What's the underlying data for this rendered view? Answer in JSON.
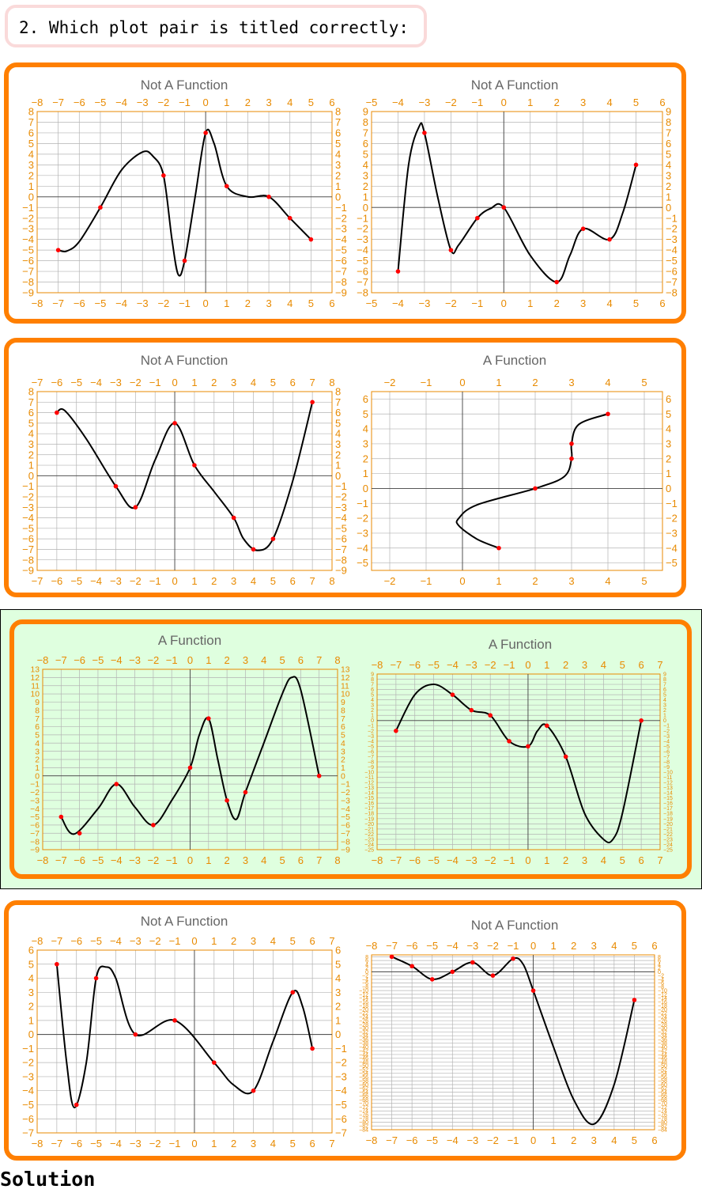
{
  "question": {
    "text": "2. Which plot pair is titled correctly:"
  },
  "solution_label": "Solution",
  "colors": {
    "panel_border": "#ff7f00",
    "highlight_bg": "#dfffdf",
    "tick_color": "#e88a00",
    "title_color": "#666666",
    "curve": "#000000",
    "point": "#ff0000",
    "grid": "#b4b4b4"
  },
  "chart_data": [
    {
      "type": "line",
      "title": "Not A Function",
      "xlim": [
        -8,
        6
      ],
      "ylim": [
        -9,
        8
      ],
      "xticks": [
        -8,
        -7,
        -6,
        -5,
        -4,
        -3,
        -2,
        -1,
        0,
        1,
        2,
        3,
        4,
        5,
        6
      ],
      "yticks": [
        -9,
        -8,
        -7,
        -6,
        -5,
        -4,
        -3,
        -2,
        -1,
        0,
        1,
        2,
        3,
        4,
        5,
        6,
        7,
        8
      ],
      "points": [
        [
          -7,
          -5
        ],
        [
          -5,
          -1
        ],
        [
          -2,
          2
        ],
        [
          -1,
          -6
        ],
        [
          0,
          6
        ],
        [
          1,
          1
        ],
        [
          3,
          0
        ],
        [
          4,
          -2
        ],
        [
          5,
          -4
        ]
      ],
      "curve": [
        [
          -7,
          -5
        ],
        [
          -6.6,
          -5.1
        ],
        [
          -6,
          -4.2
        ],
        [
          -5,
          -1
        ],
        [
          -4,
          2.5
        ],
        [
          -3,
          4.2
        ],
        [
          -2.5,
          3.8
        ],
        [
          -2,
          2
        ],
        [
          -1.6,
          -4
        ],
        [
          -1.3,
          -7.3
        ],
        [
          -1,
          -6
        ],
        [
          -0.5,
          0
        ],
        [
          0,
          6
        ],
        [
          0.4,
          5
        ],
        [
          1,
          1
        ],
        [
          2,
          0
        ],
        [
          3,
          0
        ],
        [
          4,
          -2
        ],
        [
          5,
          -4
        ]
      ]
    },
    {
      "type": "line",
      "title": "Not A Function",
      "xlim": [
        -5,
        6
      ],
      "ylim": [
        -8,
        9
      ],
      "xticks": [
        -5,
        -4,
        -3,
        -2,
        -1,
        0,
        1,
        2,
        3,
        4,
        5,
        6
      ],
      "yticks": [
        -8,
        -7,
        -6,
        -5,
        -4,
        -3,
        -2,
        -1,
        0,
        1,
        2,
        3,
        4,
        5,
        6,
        7,
        8,
        9
      ],
      "points": [
        [
          -4,
          -6
        ],
        [
          -3,
          7
        ],
        [
          -2,
          -4
        ],
        [
          -1,
          -1
        ],
        [
          0,
          0
        ],
        [
          2,
          -7
        ],
        [
          3,
          -2
        ],
        [
          4,
          -3
        ],
        [
          5,
          4
        ]
      ],
      "curve": [
        [
          -4,
          -6
        ],
        [
          -3.6,
          4
        ],
        [
          -3.2,
          7.6
        ],
        [
          -3,
          7
        ],
        [
          -2.5,
          1
        ],
        [
          -2,
          -4
        ],
        [
          -1.7,
          -3.5
        ],
        [
          -1,
          -1
        ],
        [
          -0.5,
          -0.1
        ],
        [
          0,
          0
        ],
        [
          1,
          -4.5
        ],
        [
          2,
          -7
        ],
        [
          2.5,
          -4.5
        ],
        [
          3,
          -2
        ],
        [
          4,
          -3
        ],
        [
          4.5,
          -0.5
        ],
        [
          5,
          4
        ]
      ]
    },
    {
      "type": "line",
      "title": "Not A Function",
      "xlim": [
        -7,
        8
      ],
      "ylim": [
        -9,
        8
      ],
      "xticks": [
        -7,
        -6,
        -5,
        -4,
        -3,
        -2,
        -1,
        0,
        1,
        2,
        3,
        4,
        5,
        6,
        7,
        8
      ],
      "yticks": [
        -9,
        -8,
        -7,
        -6,
        -5,
        -4,
        -3,
        -2,
        -1,
        0,
        1,
        2,
        3,
        4,
        5,
        6,
        7,
        8
      ],
      "points": [
        [
          -6,
          6
        ],
        [
          -3,
          -1
        ],
        [
          -2,
          -3
        ],
        [
          0,
          5
        ],
        [
          1,
          1
        ],
        [
          3,
          -4
        ],
        [
          4,
          -7
        ],
        [
          5,
          -6
        ],
        [
          7,
          7
        ]
      ],
      "curve": [
        [
          -6,
          6
        ],
        [
          -5.6,
          6.2
        ],
        [
          -4.5,
          3.5
        ],
        [
          -3,
          -1
        ],
        [
          -2,
          -3
        ],
        [
          -1,
          1.5
        ],
        [
          0,
          5
        ],
        [
          1,
          1
        ],
        [
          2,
          -1.5
        ],
        [
          3,
          -4
        ],
        [
          3.5,
          -6
        ],
        [
          4.2,
          -7.1
        ],
        [
          5,
          -6
        ],
        [
          6,
          -0.5
        ],
        [
          7,
          7
        ]
      ]
    },
    {
      "type": "line",
      "title": "A Function",
      "xlim": [
        -2.5,
        5.5
      ],
      "ylim": [
        -5.5,
        6.5
      ],
      "xticks": [
        -2,
        -1,
        0,
        1,
        2,
        3,
        4,
        5
      ],
      "yticks": [
        -5,
        -4,
        -3,
        -2,
        -1,
        0,
        1,
        2,
        3,
        4,
        5,
        6
      ],
      "points": [
        [
          1,
          -4
        ],
        [
          2,
          0
        ],
        [
          3,
          2
        ],
        [
          3,
          3
        ],
        [
          4,
          5
        ]
      ],
      "curve": [
        [
          1,
          -4
        ],
        [
          0.4,
          -3.4
        ],
        [
          -0.1,
          -2.5
        ],
        [
          -0.1,
          -2
        ],
        [
          0.4,
          -1.1
        ],
        [
          2,
          0
        ],
        [
          2.8,
          0.8
        ],
        [
          3,
          2
        ],
        [
          3,
          3
        ],
        [
          3.2,
          4.3
        ],
        [
          4,
          5
        ]
      ]
    },
    {
      "type": "line",
      "title": "A Function",
      "xlim": [
        -8,
        8
      ],
      "ylim": [
        -9,
        13
      ],
      "xticks": [
        -8,
        -7,
        -6,
        -5,
        -4,
        -3,
        -2,
        -1,
        0,
        1,
        2,
        3,
        4,
        5,
        6,
        7,
        8
      ],
      "yticks": [
        -9,
        -8,
        -7,
        -6,
        -5,
        -4,
        -3,
        -2,
        -1,
        0,
        1,
        2,
        3,
        4,
        5,
        6,
        7,
        8,
        9,
        10,
        11,
        12,
        13
      ],
      "points": [
        [
          -7,
          -5
        ],
        [
          -6,
          -7
        ],
        [
          -4,
          -1
        ],
        [
          -2,
          -6
        ],
        [
          0,
          1
        ],
        [
          1,
          7
        ],
        [
          2,
          -3
        ],
        [
          3,
          -2
        ],
        [
          7,
          0
        ]
      ],
      "curve": [
        [
          -7,
          -5
        ],
        [
          -6.3,
          -7.1
        ],
        [
          -5,
          -4
        ],
        [
          -4,
          -1
        ],
        [
          -3,
          -3.8
        ],
        [
          -2,
          -6
        ],
        [
          -1,
          -3
        ],
        [
          0,
          1
        ],
        [
          0.5,
          5
        ],
        [
          1,
          7
        ],
        [
          1.5,
          2
        ],
        [
          2,
          -3
        ],
        [
          2.5,
          -5.3
        ],
        [
          3,
          -2
        ],
        [
          4,
          4
        ],
        [
          5,
          10
        ],
        [
          5.5,
          12
        ],
        [
          6,
          10.5
        ],
        [
          7,
          0
        ]
      ]
    },
    {
      "type": "line",
      "title": "A Function",
      "xlim": [
        -8,
        7
      ],
      "ylim": [
        -25,
        9
      ],
      "xticks": [
        -8,
        -7,
        -6,
        -5,
        -4,
        -3,
        -2,
        -1,
        0,
        1,
        2,
        3,
        4,
        5,
        6,
        7
      ],
      "yticks": [
        -25,
        -24,
        -23,
        -22,
        -21,
        -20,
        -19,
        -18,
        -17,
        -16,
        -15,
        -14,
        -13,
        -12,
        -11,
        -10,
        -9,
        -8,
        -7,
        -6,
        -5,
        -4,
        -3,
        -2,
        -1,
        0,
        1,
        2,
        3,
        4,
        5,
        6,
        7,
        8,
        9
      ],
      "points": [
        [
          -7,
          -2
        ],
        [
          -4,
          5
        ],
        [
          -3,
          2
        ],
        [
          -2,
          1
        ],
        [
          -1,
          -4
        ],
        [
          0,
          -5
        ],
        [
          1,
          -1
        ],
        [
          2,
          -7
        ],
        [
          6,
          0
        ]
      ],
      "curve": [
        [
          -7,
          -2
        ],
        [
          -6,
          5
        ],
        [
          -5,
          7
        ],
        [
          -4,
          5
        ],
        [
          -3,
          2
        ],
        [
          -2,
          1
        ],
        [
          -1,
          -4
        ],
        [
          0,
          -5
        ],
        [
          0.5,
          -2
        ],
        [
          1,
          -1
        ],
        [
          2,
          -7
        ],
        [
          3,
          -18
        ],
        [
          4,
          -23
        ],
        [
          4.5,
          -23
        ],
        [
          5,
          -18
        ],
        [
          6,
          0
        ]
      ]
    },
    {
      "type": "line",
      "title": "Not A Function",
      "xlim": [
        -8,
        7
      ],
      "ylim": [
        -7,
        6
      ],
      "xticks": [
        -8,
        -7,
        -6,
        -5,
        -4,
        -3,
        -2,
        -1,
        0,
        1,
        2,
        3,
        4,
        5,
        6,
        7
      ],
      "yticks": [
        -7,
        -6,
        -5,
        -4,
        -3,
        -2,
        -1,
        0,
        1,
        2,
        3,
        4,
        5,
        6
      ],
      "points": [
        [
          -7,
          5
        ],
        [
          -6,
          -5
        ],
        [
          -5,
          4
        ],
        [
          -3,
          0
        ],
        [
          -1,
          1
        ],
        [
          1,
          -2
        ],
        [
          3,
          -4
        ],
        [
          5,
          3
        ],
        [
          6,
          -1
        ]
      ],
      "curve": [
        [
          -7,
          5
        ],
        [
          -6.5,
          -2
        ],
        [
          -6.1,
          -5.2
        ],
        [
          -5.5,
          -2
        ],
        [
          -5,
          4
        ],
        [
          -4.5,
          4.8
        ],
        [
          -4,
          4
        ],
        [
          -3,
          0
        ],
        [
          -1,
          1
        ],
        [
          1,
          -2
        ],
        [
          2,
          -3.6
        ],
        [
          3,
          -4
        ],
        [
          4,
          -0.5
        ],
        [
          5,
          3
        ],
        [
          5.5,
          2
        ],
        [
          6,
          -1
        ]
      ]
    },
    {
      "type": "line",
      "title": "Not A Function",
      "xlim": [
        -8,
        6
      ],
      "ylim": [
        -84,
        9
      ],
      "xticks": [
        -8,
        -7,
        -6,
        -5,
        -4,
        -3,
        -2,
        -1,
        0,
        1,
        2,
        3,
        4,
        5,
        6
      ],
      "yticks": [],
      "points": [
        [
          -7,
          8
        ],
        [
          -6,
          3
        ],
        [
          -5,
          -4
        ],
        [
          -4,
          0
        ],
        [
          -3,
          5
        ],
        [
          -2,
          -2
        ],
        [
          -1,
          7
        ],
        [
          0,
          -10
        ],
        [
          5,
          -15
        ]
      ],
      "curve": [
        [
          -7,
          8
        ],
        [
          -6,
          3
        ],
        [
          -5,
          -4
        ],
        [
          -4,
          0
        ],
        [
          -3,
          5
        ],
        [
          -2,
          -2
        ],
        [
          -1,
          7
        ],
        [
          -0.5,
          4
        ],
        [
          0,
          -10
        ],
        [
          1,
          -40
        ],
        [
          2,
          -68
        ],
        [
          3,
          -81
        ],
        [
          4,
          -60
        ],
        [
          5,
          -15
        ]
      ]
    }
  ]
}
